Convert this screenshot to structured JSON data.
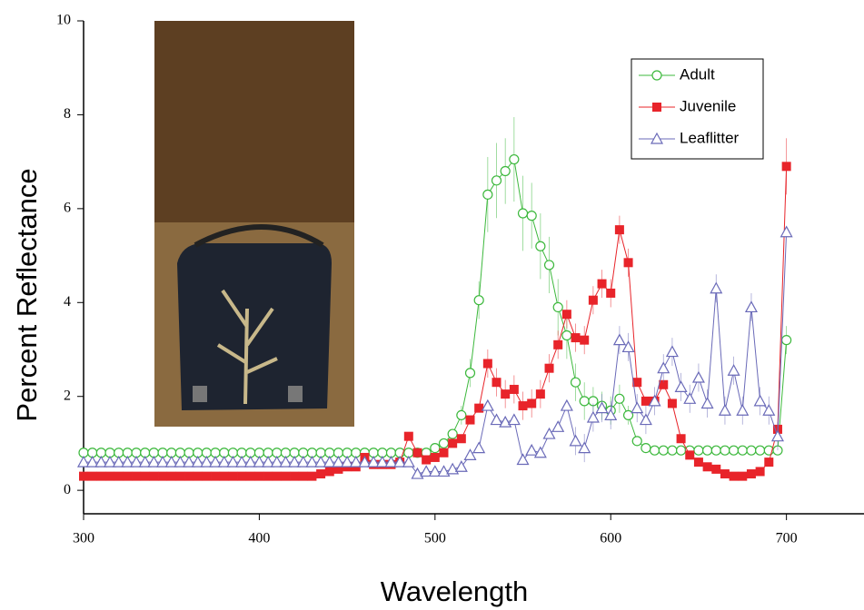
{
  "chart_data": {
    "type": "line",
    "x_label": "Wavelength",
    "y_label": "Percent Reflectance",
    "x": [
      300,
      305,
      310,
      315,
      320,
      325,
      330,
      335,
      340,
      345,
      350,
      355,
      360,
      365,
      370,
      375,
      380,
      385,
      390,
      395,
      400,
      405,
      410,
      415,
      420,
      425,
      430,
      435,
      440,
      445,
      450,
      455,
      460,
      465,
      470,
      475,
      480,
      485,
      490,
      495,
      500,
      505,
      510,
      515,
      520,
      525,
      530,
      535,
      540,
      545,
      550,
      555,
      560,
      565,
      570,
      575,
      580,
      585,
      590,
      595,
      600,
      605,
      610,
      615,
      620,
      625,
      630,
      635,
      640,
      645,
      650,
      655,
      660,
      665,
      670,
      675,
      680,
      685,
      690,
      695,
      700
    ],
    "series": [
      {
        "name": "Adult",
        "color": "#3cb83c",
        "marker": "circle",
        "values": [
          0.8,
          0.8,
          0.8,
          0.8,
          0.8,
          0.8,
          0.8,
          0.8,
          0.8,
          0.8,
          0.8,
          0.8,
          0.8,
          0.8,
          0.8,
          0.8,
          0.8,
          0.8,
          0.8,
          0.8,
          0.8,
          0.8,
          0.8,
          0.8,
          0.8,
          0.8,
          0.8,
          0.8,
          0.8,
          0.8,
          0.8,
          0.8,
          0.8,
          0.8,
          0.8,
          0.8,
          0.8,
          0.8,
          0.8,
          0.8,
          0.9,
          1.0,
          1.2,
          1.6,
          2.5,
          4.05,
          6.3,
          6.6,
          6.8,
          7.05,
          5.9,
          5.85,
          5.2,
          4.8,
          3.9,
          3.3,
          2.3,
          1.9,
          1.9,
          1.8,
          1.7,
          1.95,
          1.6,
          1.05,
          0.9,
          0.85,
          0.85,
          0.85,
          0.85,
          0.85,
          0.85,
          0.85,
          0.85,
          0.85,
          0.85,
          0.85,
          0.85,
          0.85,
          0.85,
          0.85,
          3.2
        ],
        "errors": [
          null,
          null,
          null,
          null,
          null,
          null,
          null,
          null,
          null,
          null,
          null,
          null,
          null,
          null,
          null,
          null,
          null,
          null,
          null,
          null,
          null,
          null,
          null,
          null,
          null,
          null,
          null,
          null,
          null,
          null,
          null,
          null,
          null,
          null,
          null,
          null,
          null,
          null,
          null,
          null,
          null,
          null,
          null,
          0.2,
          0.3,
          0.4,
          0.8,
          0.8,
          0.7,
          0.9,
          0.8,
          0.7,
          0.7,
          0.6,
          0.6,
          0.5,
          0.4,
          0.4,
          0.3,
          0.3,
          0.3,
          0.3,
          0.2,
          null,
          null,
          null,
          null,
          null,
          null,
          null,
          null,
          null,
          null,
          null,
          null,
          null,
          null,
          null,
          null,
          null,
          0.3
        ]
      },
      {
        "name": "Juvenile",
        "color": "#e8242a",
        "marker": "square",
        "values": [
          0.3,
          0.3,
          0.3,
          0.3,
          0.3,
          0.3,
          0.3,
          0.3,
          0.3,
          0.3,
          0.3,
          0.3,
          0.3,
          0.3,
          0.3,
          0.3,
          0.3,
          0.3,
          0.3,
          0.3,
          0.3,
          0.3,
          0.3,
          0.3,
          0.3,
          0.3,
          0.3,
          0.35,
          0.4,
          0.45,
          0.5,
          0.5,
          0.7,
          0.55,
          0.55,
          0.55,
          0.6,
          1.15,
          0.8,
          0.65,
          0.7,
          0.8,
          1.0,
          1.1,
          1.5,
          1.75,
          2.7,
          2.3,
          2.05,
          2.15,
          1.8,
          1.85,
          2.05,
          2.6,
          3.1,
          3.75,
          3.25,
          3.2,
          4.05,
          4.4,
          4.2,
          5.55,
          4.85,
          2.3,
          1.9,
          1.9,
          2.25,
          1.85,
          1.1,
          0.75,
          0.6,
          0.5,
          0.45,
          0.35,
          0.3,
          0.3,
          0.35,
          0.4,
          0.6,
          1.3,
          6.9
        ],
        "errors": [
          null,
          null,
          null,
          null,
          null,
          null,
          null,
          null,
          null,
          null,
          null,
          null,
          null,
          null,
          null,
          null,
          null,
          null,
          null,
          null,
          null,
          null,
          null,
          null,
          null,
          null,
          null,
          null,
          null,
          null,
          null,
          null,
          null,
          null,
          null,
          null,
          null,
          null,
          null,
          null,
          null,
          null,
          null,
          null,
          null,
          null,
          0.3,
          0.3,
          0.3,
          0.3,
          0.3,
          0.3,
          0.3,
          0.3,
          0.3,
          0.3,
          0.3,
          0.3,
          0.3,
          0.3,
          0.3,
          0.3,
          0.3,
          null,
          null,
          null,
          null,
          null,
          null,
          null,
          null,
          null,
          null,
          null,
          null,
          null,
          null,
          null,
          null,
          null,
          0.6
        ]
      },
      {
        "name": "Leaflitter",
        "color": "#6a6ab8",
        "marker": "triangle",
        "values": [
          0.6,
          0.6,
          0.6,
          0.6,
          0.6,
          0.6,
          0.6,
          0.6,
          0.6,
          0.6,
          0.6,
          0.6,
          0.6,
          0.6,
          0.6,
          0.6,
          0.6,
          0.6,
          0.6,
          0.6,
          0.6,
          0.6,
          0.6,
          0.6,
          0.6,
          0.6,
          0.6,
          0.6,
          0.6,
          0.6,
          0.6,
          0.6,
          0.6,
          0.6,
          0.6,
          0.6,
          0.6,
          0.6,
          0.35,
          0.4,
          0.4,
          0.4,
          0.45,
          0.5,
          0.75,
          0.9,
          1.8,
          1.5,
          1.45,
          1.5,
          0.65,
          0.85,
          0.8,
          1.2,
          1.35,
          1.8,
          1.05,
          0.9,
          1.55,
          1.75,
          1.6,
          3.2,
          3.05,
          1.75,
          1.5,
          1.9,
          2.6,
          2.95,
          2.2,
          1.95,
          2.4,
          1.85,
          4.3,
          1.7,
          2.55,
          1.7,
          3.9,
          1.9,
          1.7,
          1.15,
          5.5
        ],
        "errors": [
          null,
          null,
          null,
          null,
          null,
          null,
          null,
          null,
          null,
          null,
          null,
          null,
          null,
          null,
          null,
          null,
          null,
          null,
          null,
          null,
          null,
          null,
          null,
          null,
          null,
          null,
          null,
          null,
          null,
          null,
          null,
          null,
          null,
          null,
          null,
          null,
          null,
          null,
          null,
          null,
          null,
          null,
          null,
          null,
          null,
          null,
          null,
          null,
          null,
          null,
          null,
          null,
          null,
          null,
          null,
          null,
          0.3,
          0.3,
          0.3,
          0.3,
          0.3,
          0.3,
          0.3,
          0.3,
          0.3,
          0.3,
          0.3,
          0.3,
          0.3,
          0.3,
          0.3,
          0.3,
          0.3,
          0.3,
          0.3,
          0.3,
          0.3,
          0.3,
          0.3,
          0.3,
          null
        ]
      }
    ],
    "xlim": [
      300,
      740
    ],
    "xticks": [
      300,
      400,
      500,
      600,
      700
    ],
    "ylim": [
      -0.5,
      10
    ],
    "yticks": [
      0,
      2,
      4,
      6,
      8,
      10
    ],
    "legend": "upper right"
  }
}
